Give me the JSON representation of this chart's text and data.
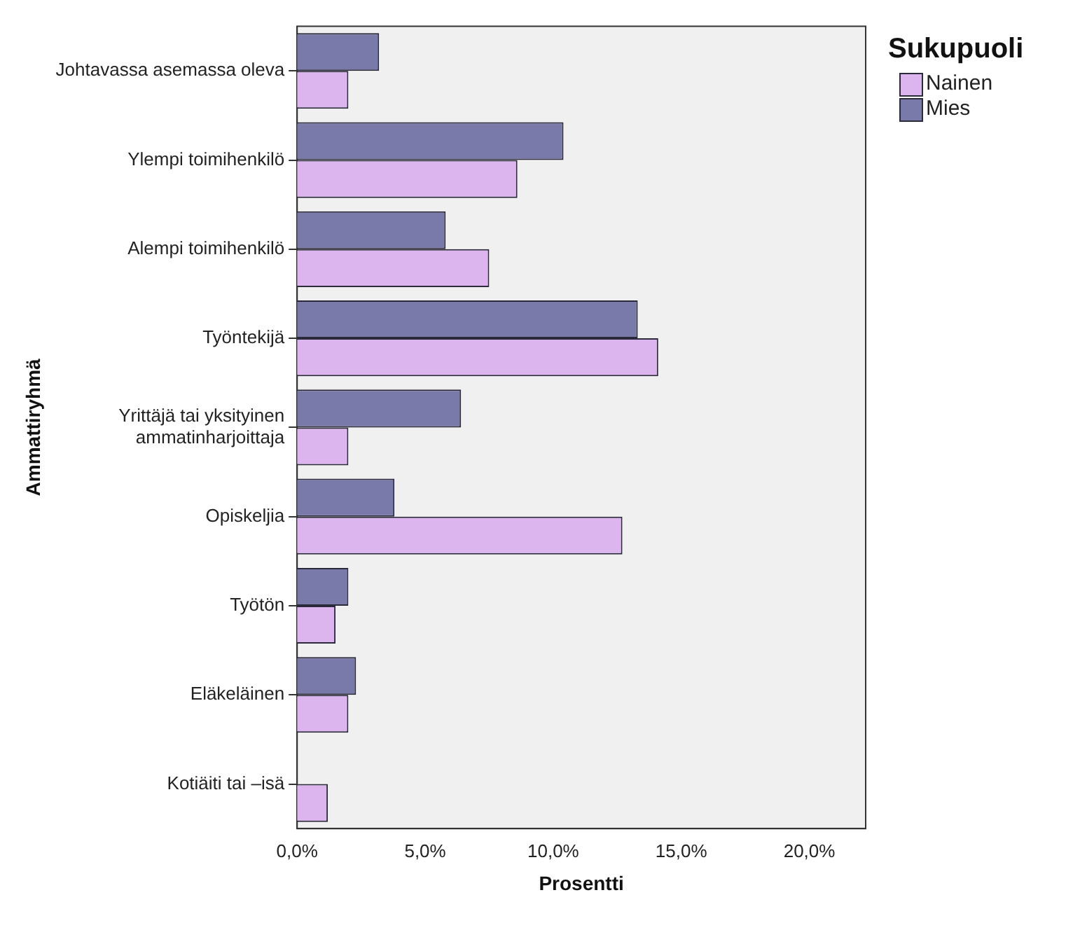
{
  "chart_data": {
    "type": "bar",
    "orientation": "horizontal",
    "xlabel": "Prosentti",
    "ylabel": "Ammattiryhmä",
    "legend_title": "Sukupuoli",
    "legend": "top right",
    "grid": false,
    "categories": [
      "Johtavassa asemassa oleva",
      "Ylempi toimihenkilö",
      "Alempi toimihenkilö",
      "Työntekijä",
      "Yrittäjä tai yksityinen ammatinharjoittaja",
      "Opiskeljia",
      "Työtön",
      "Eläkeläinen",
      "Kotiäiti tai –isä"
    ],
    "series": [
      {
        "name": "Nainen",
        "color": "#dcb4ee",
        "values": [
          2.0,
          8.6,
          7.5,
          14.1,
          2.0,
          12.7,
          1.5,
          2.0,
          1.2
        ]
      },
      {
        "name": "Mies",
        "color": "#7a7aaa",
        "values": [
          3.2,
          10.4,
          5.8,
          13.3,
          6.4,
          3.8,
          2.0,
          2.3,
          null
        ]
      }
    ],
    "xlim": [
      0,
      22.2
    ],
    "xticks": [
      {
        "value": 0,
        "label": "0,0%"
      },
      {
        "value": 5,
        "label": "5,0%"
      },
      {
        "value": 10,
        "label": "10,0%"
      },
      {
        "value": 15,
        "label": "15,0%"
      },
      {
        "value": 20,
        "label": "20,0%"
      }
    ]
  }
}
